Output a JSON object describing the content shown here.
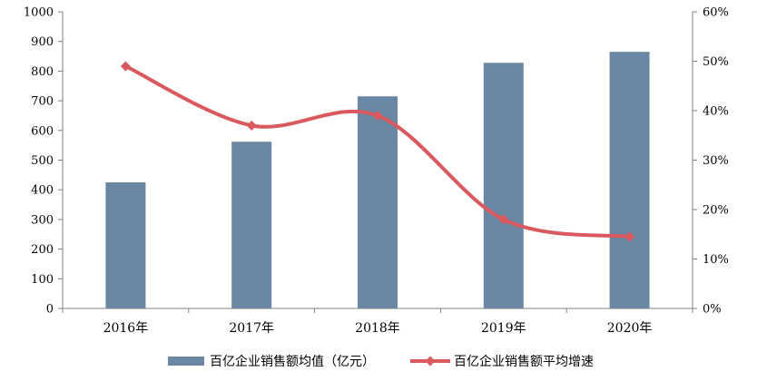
{
  "chart_data": {
    "type": "bar",
    "categories": [
      "2016年",
      "2017年",
      "2018年",
      "2019年",
      "2020年"
    ],
    "series": [
      {
        "name": "百亿企业销售额均值（亿元）",
        "type": "bar",
        "axis": "left",
        "color": "#6a87a4",
        "values": [
          425,
          562,
          715,
          828,
          865
        ]
      },
      {
        "name": "百亿企业销售额平均增速",
        "type": "line",
        "axis": "right",
        "color": "#d9595f",
        "values": [
          0.49,
          0.37,
          0.39,
          0.18,
          0.145
        ],
        "smooth": true
      }
    ],
    "y_left": {
      "ylim": [
        0,
        1000
      ],
      "ticks": [
        0,
        100,
        200,
        300,
        400,
        500,
        600,
        700,
        800,
        900,
        1000
      ],
      "tick_labels": [
        "0",
        "100",
        "200",
        "300",
        "400",
        "500",
        "600",
        "700",
        "800",
        "900",
        "1000"
      ]
    },
    "y_right": {
      "ylim": [
        0,
        0.6
      ],
      "ticks": [
        0,
        0.1,
        0.2,
        0.3,
        0.4,
        0.5,
        0.6
      ],
      "tick_labels": [
        "0%",
        "10%",
        "20%",
        "30%",
        "40%",
        "50%",
        "60%"
      ]
    },
    "grid": false,
    "legend_position": "bottom",
    "title": "",
    "xlabel": "",
    "ylabel": ""
  }
}
